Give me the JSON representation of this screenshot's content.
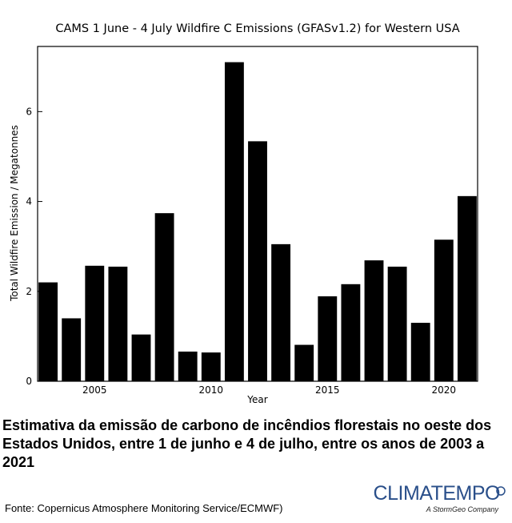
{
  "chart_data": {
    "type": "bar",
    "title": "CAMS 1 June - 4 July Wildfire C Emissions (GFASv1.2) for Western USA",
    "xlabel": "Year",
    "ylabel": "Total Wildfire Emission / Megatonnes",
    "x": [
      2003,
      2004,
      2005,
      2006,
      2007,
      2008,
      2009,
      2010,
      2011,
      2012,
      2013,
      2014,
      2015,
      2016,
      2017,
      2018,
      2019,
      2020,
      2021
    ],
    "values": [
      2.2,
      1.4,
      2.57,
      2.55,
      1.04,
      3.74,
      0.66,
      0.64,
      7.1,
      5.34,
      3.05,
      0.81,
      1.89,
      2.16,
      2.69,
      2.55,
      1.3,
      3.15,
      4.12
    ],
    "xticks": [
      2005,
      2010,
      2015,
      2020
    ],
    "yticks": [
      0,
      2,
      4,
      6
    ],
    "xlim": [
      2002.55,
      2021.45
    ],
    "ylim": [
      0,
      7.45
    ],
    "bar_color": "#000000",
    "grid": false
  },
  "caption": "Estimativa da emissão de carbono de incêndios florestais no oeste dos Estados Unidos, entre 1 de junho e 4 de julho, entre os anos de 2003 a 2021",
  "source": "Fonte: Copernicus Atmosphere Monitoring Service/ECMWF)",
  "logo": {
    "wordmark": "CLIMATEMPO",
    "tagline": "A StormGeo Company",
    "color": "#2a4f8a"
  }
}
